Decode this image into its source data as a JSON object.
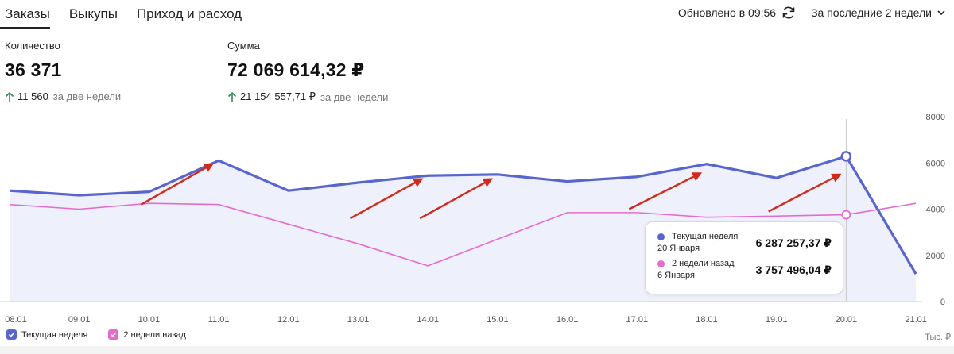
{
  "tabs": [
    {
      "label": "Заказы",
      "active": true
    },
    {
      "label": "Выкупы",
      "active": false
    },
    {
      "label": "Приход и расход",
      "active": false
    }
  ],
  "header": {
    "updated": "Обновлено в 09:56",
    "refresh_icon": "refresh-icon",
    "period": "За последние 2 недели"
  },
  "metrics": {
    "quantity": {
      "label": "Количество",
      "value": "36 371",
      "delta": "11 560",
      "delta_period": "за две недели"
    },
    "sum": {
      "label": "Сумма",
      "value": "72 069 614,32 ₽",
      "delta": "21 154 557,71 ₽",
      "delta_period": "за две недели"
    }
  },
  "colors": {
    "current": "#5865cf",
    "previous": "#e56ccf",
    "fill": "#eef0fb",
    "arrow": "#d12a1a",
    "up": "#2e8b57"
  },
  "chart_data": {
    "type": "line",
    "categories": [
      "08.01",
      "09.01",
      "10.01",
      "11.01",
      "12.01",
      "13.01",
      "14.01",
      "15.01",
      "16.01",
      "17.01",
      "18.01",
      "19.01",
      "20.01",
      "21.01"
    ],
    "series": [
      {
        "name": "Текущая неделя",
        "values": [
          4800,
          4600,
          4750,
          6100,
          4800,
          5150,
          5450,
          5500,
          5200,
          5400,
          5950,
          5350,
          6287.26,
          1200
        ]
      },
      {
        "name": "2 недели назад",
        "values": [
          4200,
          4000,
          4250,
          4200,
          3350,
          2500,
          1550,
          2700,
          3850,
          3850,
          3650,
          3700,
          3757.5,
          4250
        ]
      }
    ],
    "y_ticks": [
      "0",
      "2000",
      "4000",
      "6000",
      "8000"
    ],
    "ylim": [
      0,
      8000
    ],
    "unit": "Тыс. ₽",
    "highlight_index": 12,
    "annotation_arrows": [
      {
        "from": [
          2,
          4200
        ],
        "to": [
          3,
          5950
        ]
      },
      {
        "from": [
          5,
          3600
        ],
        "to": [
          6,
          5300
        ]
      },
      {
        "from": [
          6,
          3600
        ],
        "to": [
          7,
          5300
        ]
      },
      {
        "from": [
          9,
          4000
        ],
        "to": [
          10,
          5550
        ]
      },
      {
        "from": [
          11,
          3900
        ],
        "to": [
          12,
          5500
        ]
      }
    ]
  },
  "tooltip": {
    "current_name": "Текущая неделя",
    "current_date": "20 Января",
    "current_value": "6 287 257,37 ₽",
    "previous_name": "2 недели назад",
    "previous_date": "6 Января",
    "previous_value": "3 757 496,04 ₽"
  },
  "legend": {
    "current": "Текущая неделя",
    "previous": "2 недели назад"
  },
  "unit_label": "Тыс. ₽"
}
